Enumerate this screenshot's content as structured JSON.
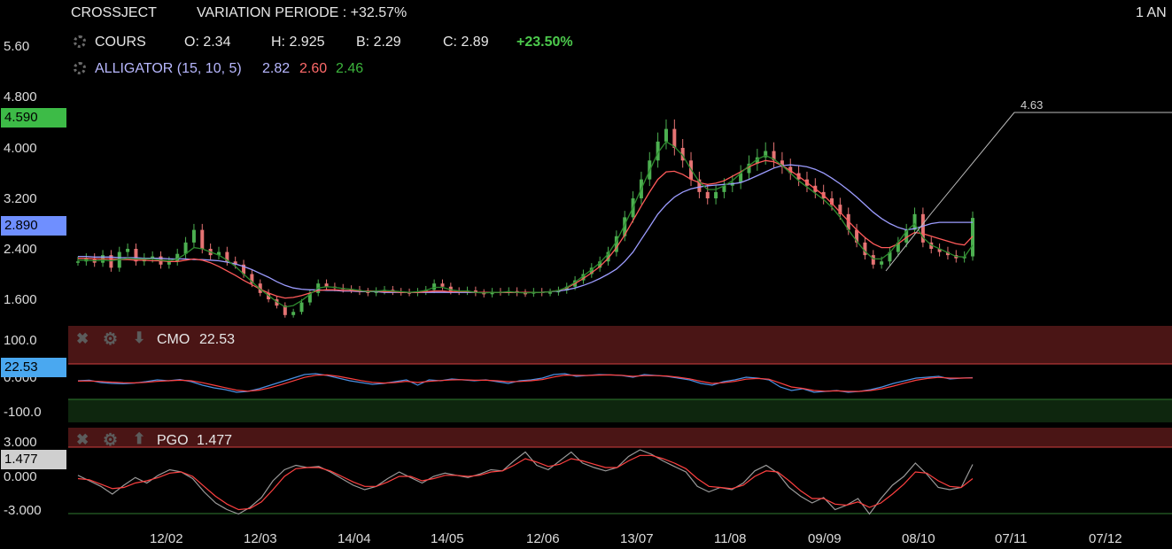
{
  "header": {
    "symbol": "CROSSJECT",
    "variation": "VARIATION PERIODE : +32.57%",
    "period": "1 AN",
    "cours_label": "COURS",
    "o": "O: 2.34",
    "h": "H: 2.925",
    "b": "B: 2.29",
    "c": "C: 2.89",
    "change": "+23.50%",
    "alligator_label": "ALLIGATOR (15, 10, 5)",
    "alligator_blue": "2.82",
    "alligator_red": "2.60",
    "alligator_green": "2.46"
  },
  "colors": {
    "up": "#4caf50",
    "down": "#e57373",
    "jaw": "#9c9cff",
    "teeth": "#ff5a5a",
    "lips": "#2e8b2e",
    "cmo": "#4a90e2",
    "pgo": "#9a9a9a",
    "signal": "#ff4040",
    "change": "#4cc94c"
  },
  "price_axis": {
    "ticks": [
      "5.60",
      "4.800",
      "4.000",
      "3.200",
      "2.400",
      "1.600"
    ],
    "high_tag": "4.590",
    "last_tag": "2.890",
    "trendline_label": "4.63"
  },
  "cmo_panel": {
    "name": "CMO",
    "value": "22.53",
    "tag": "22.53",
    "ticks": [
      "100.0",
      "0.000",
      "-100.0"
    ],
    "close_icon": "close-icon",
    "gear_icon": "gear-icon",
    "move_icon": "arrow-down-icon"
  },
  "pgo_panel": {
    "name": "PGO",
    "value": "1.477",
    "tag": "1.477",
    "ticks": [
      "3.000",
      "0.000",
      "-3.000"
    ],
    "close_icon": "close-icon",
    "gear_icon": "gear-icon",
    "move_icon": "arrow-up-icon"
  },
  "x_axis": {
    "labels": [
      "12/02",
      "12/03",
      "14/04",
      "14/05",
      "12/06",
      "13/07",
      "11/08",
      "09/09",
      "08/10",
      "07/11",
      "07/12"
    ]
  },
  "chart_data": {
    "type": "candlestick",
    "title": "CROSSJECT",
    "ylim": [
      1.3,
      5.8
    ],
    "trend_points": [
      [
        0.67,
        2.85
      ],
      [
        0.75,
        2.2
      ],
      [
        0.83,
        3.0
      ],
      [
        0.9,
        3.3
      ],
      [
        0.96,
        3.85
      ],
      [
        1.0,
        4.35
      ]
    ],
    "close_series": [
      2.2,
      2.25,
      2.18,
      2.3,
      2.1,
      2.35,
      2.4,
      2.2,
      2.25,
      2.28,
      2.15,
      2.2,
      2.32,
      2.5,
      2.7,
      2.4,
      2.3,
      2.35,
      2.2,
      2.15,
      2.0,
      1.85,
      1.7,
      1.6,
      1.5,
      1.35,
      1.4,
      1.55,
      1.7,
      1.85,
      1.8,
      1.78,
      1.76,
      1.75,
      1.72,
      1.7,
      1.73,
      1.75,
      1.72,
      1.71,
      1.7,
      1.72,
      1.75,
      1.85,
      1.8,
      1.73,
      1.72,
      1.74,
      1.7,
      1.68,
      1.72,
      1.71,
      1.73,
      1.7,
      1.69,
      1.72,
      1.7,
      1.71,
      1.74,
      1.8,
      1.9,
      2.0,
      2.1,
      2.2,
      2.35,
      2.6,
      2.9,
      3.2,
      3.5,
      3.8,
      4.1,
      4.3,
      4.0,
      3.8,
      3.5,
      3.3,
      3.2,
      3.3,
      3.4,
      3.45,
      3.6,
      3.75,
      3.85,
      3.95,
      3.8,
      3.7,
      3.6,
      3.5,
      3.4,
      3.3,
      3.2,
      3.1,
      2.95,
      2.7,
      2.5,
      2.3,
      2.15,
      2.2,
      2.35,
      2.5,
      2.7,
      2.95,
      2.5,
      2.4,
      2.35,
      2.3,
      2.25,
      2.28,
      2.89
    ],
    "jaw_series": [
      2.28,
      2.28,
      2.27,
      2.27,
      2.27,
      2.26,
      2.26,
      2.26,
      2.25,
      2.25,
      2.25,
      2.24,
      2.24,
      2.24,
      2.23,
      2.23,
      2.22,
      2.21,
      2.19,
      2.16,
      2.12,
      2.07,
      2.01,
      1.95,
      1.88,
      1.82,
      1.78,
      1.76,
      1.75,
      1.75,
      1.74,
      1.74,
      1.73,
      1.73,
      1.72,
      1.72,
      1.72,
      1.71,
      1.71,
      1.71,
      1.71,
      1.71,
      1.71,
      1.71,
      1.71,
      1.71,
      1.71,
      1.71,
      1.71,
      1.71,
      1.71,
      1.71,
      1.71,
      1.71,
      1.71,
      1.71,
      1.71,
      1.72,
      1.73,
      1.75,
      1.78,
      1.82,
      1.87,
      1.93,
      2.0,
      2.08,
      2.2,
      2.35,
      2.55,
      2.75,
      2.95,
      3.1,
      3.22,
      3.3,
      3.35,
      3.38,
      3.4,
      3.41,
      3.42,
      3.43,
      3.45,
      3.5,
      3.56,
      3.62,
      3.68,
      3.72,
      3.73,
      3.72,
      3.7,
      3.66,
      3.6,
      3.52,
      3.43,
      3.33,
      3.22,
      3.1,
      2.98,
      2.88,
      2.8,
      2.74,
      2.7,
      2.72,
      2.76,
      2.8,
      2.82,
      2.82,
      2.82,
      2.82,
      2.82
    ],
    "teeth_series": [
      2.25,
      2.25,
      2.24,
      2.24,
      2.24,
      2.23,
      2.23,
      2.22,
      2.22,
      2.21,
      2.21,
      2.2,
      2.2,
      2.22,
      2.24,
      2.22,
      2.18,
      2.12,
      2.05,
      1.98,
      1.9,
      1.83,
      1.76,
      1.7,
      1.65,
      1.62,
      1.63,
      1.66,
      1.7,
      1.74,
      1.75,
      1.75,
      1.74,
      1.74,
      1.73,
      1.73,
      1.73,
      1.72,
      1.72,
      1.71,
      1.71,
      1.71,
      1.72,
      1.73,
      1.73,
      1.72,
      1.72,
      1.72,
      1.71,
      1.71,
      1.71,
      1.71,
      1.71,
      1.71,
      1.71,
      1.71,
      1.71,
      1.72,
      1.74,
      1.78,
      1.85,
      1.93,
      2.02,
      2.12,
      2.25,
      2.42,
      2.62,
      2.85,
      3.08,
      3.3,
      3.5,
      3.62,
      3.63,
      3.58,
      3.5,
      3.45,
      3.42,
      3.44,
      3.48,
      3.55,
      3.62,
      3.7,
      3.76,
      3.8,
      3.78,
      3.72,
      3.64,
      3.55,
      3.45,
      3.35,
      3.25,
      3.12,
      2.98,
      2.84,
      2.7,
      2.58,
      2.48,
      2.42,
      2.42,
      2.48,
      2.58,
      2.66,
      2.64,
      2.6,
      2.56,
      2.52,
      2.48,
      2.46,
      2.6
    ],
    "lips_series": [
      2.22,
      2.22,
      2.21,
      2.22,
      2.21,
      2.23,
      2.25,
      2.24,
      2.24,
      2.24,
      2.22,
      2.21,
      2.24,
      2.32,
      2.42,
      2.4,
      2.35,
      2.3,
      2.22,
      2.12,
      2.0,
      1.88,
      1.76,
      1.66,
      1.56,
      1.48,
      1.5,
      1.58,
      1.68,
      1.78,
      1.8,
      1.79,
      1.77,
      1.76,
      1.74,
      1.72,
      1.73,
      1.74,
      1.73,
      1.72,
      1.71,
      1.72,
      1.74,
      1.79,
      1.79,
      1.75,
      1.73,
      1.73,
      1.71,
      1.7,
      1.71,
      1.71,
      1.72,
      1.71,
      1.7,
      1.71,
      1.71,
      1.72,
      1.74,
      1.79,
      1.87,
      1.97,
      2.07,
      2.18,
      2.32,
      2.52,
      2.78,
      3.06,
      3.35,
      3.64,
      3.92,
      4.1,
      4.02,
      3.88,
      3.66,
      3.46,
      3.34,
      3.34,
      3.4,
      3.48,
      3.6,
      3.72,
      3.82,
      3.88,
      3.82,
      3.72,
      3.6,
      3.48,
      3.38,
      3.28,
      3.18,
      3.06,
      2.9,
      2.7,
      2.52,
      2.36,
      2.24,
      2.24,
      2.34,
      2.5,
      2.68,
      2.8,
      2.58,
      2.46,
      2.4,
      2.34,
      2.28,
      2.27,
      2.46
    ],
    "cmo_series": [
      5,
      8,
      -5,
      -10,
      -12,
      -8,
      0,
      10,
      5,
      12,
      0,
      -20,
      -35,
      -45,
      -60,
      -55,
      -40,
      -20,
      0,
      20,
      40,
      45,
      35,
      20,
      5,
      -5,
      -15,
      -10,
      0,
      10,
      -20,
      10,
      5,
      15,
      10,
      5,
      10,
      0,
      -10,
      5,
      10,
      20,
      40,
      45,
      30,
      35,
      40,
      38,
      35,
      25,
      40,
      35,
      30,
      20,
      10,
      -10,
      -20,
      0,
      10,
      25,
      20,
      10,
      -30,
      -50,
      -40,
      -60,
      -55,
      -50,
      -60,
      -55,
      -45,
      -30,
      -10,
      5,
      20,
      25,
      30,
      15,
      20,
      22.53
    ],
    "cmo_signal": [
      3,
      4,
      1,
      -3,
      -6,
      -7,
      -4,
      2,
      5,
      8,
      5,
      -6,
      -20,
      -34,
      -48,
      -54,
      -48,
      -34,
      -16,
      4,
      24,
      36,
      38,
      30,
      18,
      6,
      -4,
      -8,
      -5,
      2,
      -5,
      2,
      6,
      10,
      11,
      8,
      8,
      5,
      0,
      1,
      5,
      12,
      26,
      37,
      36,
      35,
      37,
      38,
      36,
      30,
      34,
      34,
      32,
      25,
      16,
      2,
      -10,
      -6,
      2,
      14,
      18,
      14,
      -8,
      -30,
      -38,
      -50,
      -54,
      -52,
      -55,
      -55,
      -50,
      -40,
      -25,
      -8,
      8,
      18,
      24,
      20,
      20,
      21
    ],
    "pgo_series": [
      0.5,
      0.0,
      -0.5,
      -1.2,
      -0.4,
      0.3,
      -0.2,
      0.5,
      1.0,
      0.8,
      0.2,
      -1.0,
      -2.0,
      -2.6,
      -3.0,
      -2.4,
      -1.5,
      0.0,
      1.0,
      1.4,
      1.2,
      1.3,
      0.8,
      0.2,
      -0.4,
      -0.8,
      -0.5,
      0.2,
      0.8,
      0.3,
      -0.2,
      0.4,
      0.7,
      0.5,
      0.3,
      0.6,
      1.0,
      0.9,
      1.8,
      2.6,
      1.4,
      1.0,
      1.8,
      2.6,
      1.6,
      1.2,
      0.9,
      1.2,
      2.2,
      2.8,
      2.4,
      1.8,
      1.3,
      0.8,
      -0.5,
      -1.0,
      -0.6,
      -0.8,
      -0.2,
      0.9,
      1.4,
      0.7,
      -0.6,
      -1.4,
      -2.0,
      -1.5,
      -2.6,
      -2.2,
      -1.6,
      -3.0,
      -1.6,
      -0.4,
      0.4,
      1.6,
      0.6,
      -0.6,
      -0.8,
      -0.6,
      1.477
    ],
    "pgo_signal": [
      0.2,
      0.1,
      -0.3,
      -0.7,
      -0.6,
      -0.2,
      0.0,
      0.3,
      0.7,
      0.8,
      0.4,
      -0.5,
      -1.4,
      -2.1,
      -2.6,
      -2.5,
      -1.9,
      -0.8,
      0.4,
      1.1,
      1.2,
      1.2,
      0.9,
      0.4,
      -0.1,
      -0.5,
      -0.5,
      -0.1,
      0.4,
      0.4,
      0.0,
      0.2,
      0.5,
      0.5,
      0.4,
      0.5,
      0.8,
      0.9,
      1.4,
      2.0,
      1.7,
      1.3,
      1.5,
      2.0,
      1.8,
      1.5,
      1.2,
      1.2,
      1.8,
      2.3,
      2.3,
      2.0,
      1.6,
      1.1,
      0.2,
      -0.5,
      -0.6,
      -0.7,
      -0.4,
      0.4,
      0.9,
      0.8,
      0.0,
      -0.9,
      -1.6,
      -1.6,
      -2.1,
      -2.2,
      -1.9,
      -2.4,
      -2.0,
      -1.2,
      -0.3,
      0.8,
      0.7,
      0.0,
      -0.5,
      -0.6,
      0.2
    ]
  }
}
